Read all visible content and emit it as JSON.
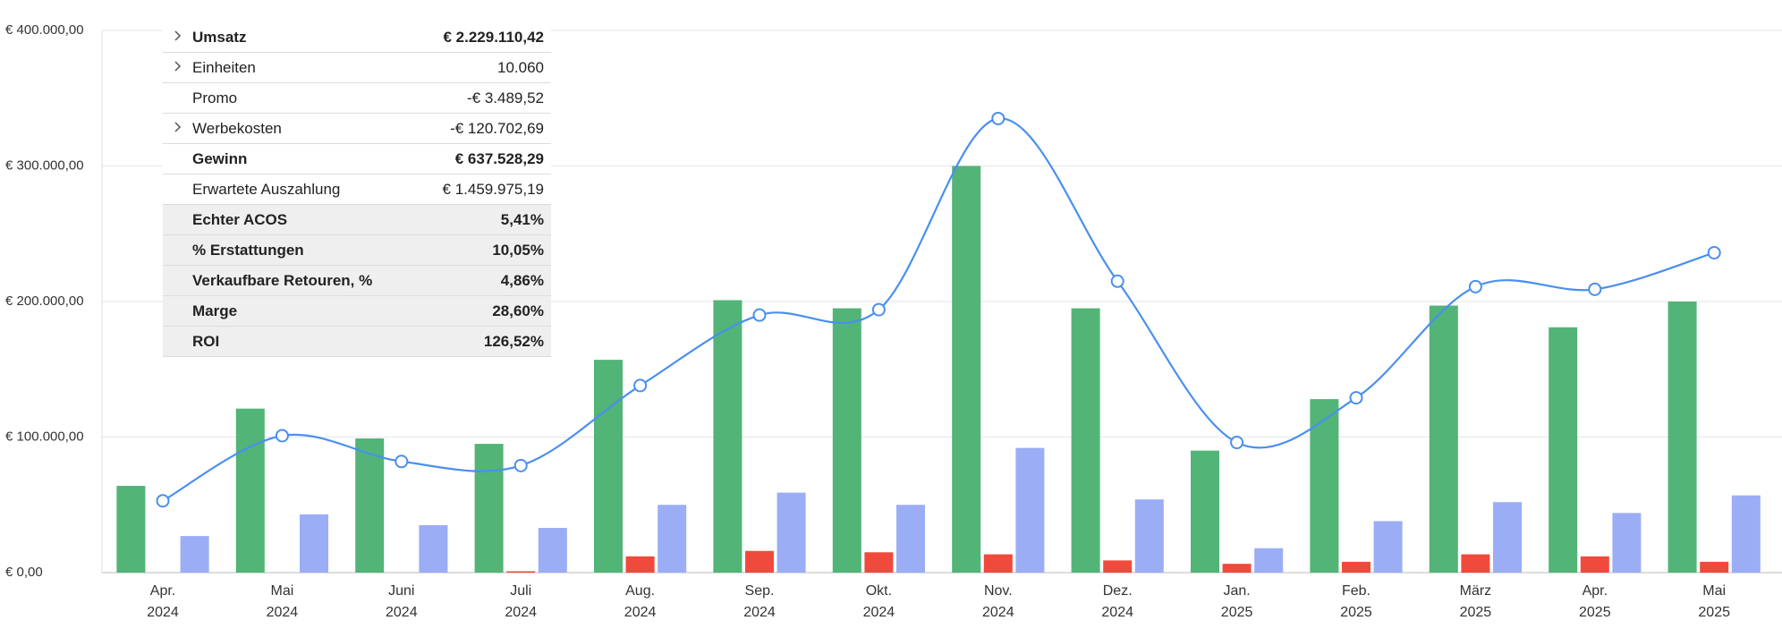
{
  "chart_data": {
    "type": "combo",
    "categories": [
      [
        "Apr.",
        "2024"
      ],
      [
        "Mai",
        "2024"
      ],
      [
        "Juni",
        "2024"
      ],
      [
        "Juli",
        "2024"
      ],
      [
        "Aug.",
        "2024"
      ],
      [
        "Sep.",
        "2024"
      ],
      [
        "Okt.",
        "2024"
      ],
      [
        "Nov.",
        "2024"
      ],
      [
        "Dez.",
        "2024"
      ],
      [
        "Jan.",
        "2025"
      ],
      [
        "Feb.",
        "2025"
      ],
      [
        "März",
        "2025"
      ],
      [
        "Apr.",
        "2025"
      ],
      [
        "Mai",
        "2025"
      ]
    ],
    "series": [
      {
        "kind": "bar",
        "color": "#52b476",
        "values": [
          64000,
          121000,
          99000,
          95000,
          157000,
          201000,
          195000,
          300000,
          195000,
          90000,
          128000,
          197000,
          181000,
          200000
        ]
      },
      {
        "kind": "bar",
        "color": "#ef4a3c",
        "values": [
          0,
          0,
          0,
          1000,
          12000,
          16000,
          15000,
          13500,
          9000,
          6500,
          8000,
          13500,
          12000,
          8000
        ]
      },
      {
        "kind": "bar",
        "color": "#9badf5",
        "values": [
          27000,
          43000,
          35000,
          33000,
          50000,
          59000,
          50000,
          92000,
          54000,
          18000,
          38000,
          52000,
          44000,
          57000
        ]
      },
      {
        "kind": "line",
        "color": "#4a8ff0",
        "values": [
          53000,
          101000,
          82000,
          79000,
          138000,
          190000,
          194000,
          335000,
          215000,
          96000,
          129000,
          211000,
          209000,
          236000
        ]
      }
    ],
    "ylim": [
      0,
      400000
    ],
    "yticks": [
      {
        "value": 0,
        "label": "€ 0,00"
      },
      {
        "value": 100000,
        "label": "€ 100.000,00"
      },
      {
        "value": 200000,
        "label": "€ 200.000,00"
      },
      {
        "value": 300000,
        "label": "€ 300.000,00"
      },
      {
        "value": 400000,
        "label": "€ 400.000,00"
      }
    ],
    "grid": true
  },
  "summary_table": {
    "rows": [
      {
        "label": "Umsatz",
        "value": "€ 2.229.110,42",
        "expandable": true,
        "bold": true,
        "shaded": false
      },
      {
        "label": "Einheiten",
        "value": "10.060",
        "expandable": true,
        "bold": false,
        "shaded": false
      },
      {
        "label": "Promo",
        "value": "-€ 3.489,52",
        "expandable": false,
        "bold": false,
        "shaded": false
      },
      {
        "label": "Werbekosten",
        "value": "-€ 120.702,69",
        "expandable": true,
        "bold": false,
        "shaded": false
      },
      {
        "label": "Gewinn",
        "value": "€ 637.528,29",
        "expandable": false,
        "bold": true,
        "shaded": false
      },
      {
        "label": "Erwartete Auszahlung",
        "value": "€ 1.459.975,19",
        "expandable": false,
        "bold": false,
        "shaded": false
      },
      {
        "label": "Echter ACOS",
        "value": "5,41%",
        "expandable": false,
        "bold": true,
        "shaded": true
      },
      {
        "label": "% Erstattungen",
        "value": "10,05%",
        "expandable": false,
        "bold": true,
        "shaded": true
      },
      {
        "label": "Verkaufbare Retouren, %",
        "value": "4,86%",
        "expandable": false,
        "bold": true,
        "shaded": true
      },
      {
        "label": "Marge",
        "value": "28,60%",
        "expandable": false,
        "bold": true,
        "shaded": true
      },
      {
        "label": "ROI",
        "value": "126,52%",
        "expandable": false,
        "bold": true,
        "shaded": true
      }
    ]
  }
}
